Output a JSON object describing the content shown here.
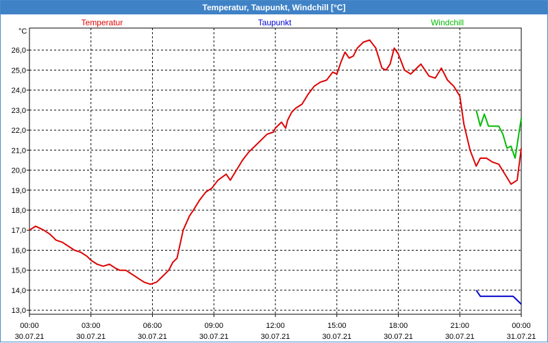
{
  "window": {
    "title": "Temperatur, Taupunkt, Windchill [°C]"
  },
  "colors": {
    "title_bar": "#3f82c6",
    "grid": "#000000",
    "temperatur": "#dd0000",
    "taupunkt": "#0000cc",
    "windchill": "#00bb00"
  },
  "chart_data": {
    "type": "line",
    "title": "Temperatur, Taupunkt, Windchill [°C]",
    "y_unit": "°C",
    "ylim": [
      12.8,
      27.1
    ],
    "xlim": [
      0,
      24
    ],
    "grid": true,
    "legend_placement": "top",
    "y_ticks": [
      13.0,
      14.0,
      15.0,
      16.0,
      17.0,
      18.0,
      19.0,
      20.0,
      21.0,
      22.0,
      23.0,
      24.0,
      25.0,
      26.0
    ],
    "y_tick_labels": [
      "13,0",
      "14,0",
      "15,0",
      "16,0",
      "17,0",
      "18,0",
      "19,0",
      "20,0",
      "21,0",
      "22,0",
      "23,0",
      "24,0",
      "25,0",
      "26,0"
    ],
    "x_ticks": [
      0,
      3,
      6,
      9,
      12,
      15,
      18,
      21,
      24
    ],
    "x_tick_times": [
      "00:00",
      "03:00",
      "06:00",
      "09:00",
      "12:00",
      "15:00",
      "18:00",
      "21:00",
      "00:00"
    ],
    "x_tick_dates": [
      "30.07.21",
      "30.07.21",
      "30.07.21",
      "30.07.21",
      "30.07.21",
      "30.07.21",
      "30.07.21",
      "30.07.21",
      "31.07.21"
    ],
    "series": [
      {
        "name": "Temperatur",
        "color": "#dd0000",
        "x": [
          0,
          0.3,
          0.5,
          0.7,
          1.0,
          1.3,
          1.6,
          1.9,
          2.2,
          2.5,
          2.8,
          3.0,
          3.3,
          3.6,
          3.9,
          4.2,
          4.4,
          4.7,
          5.0,
          5.3,
          5.6,
          5.9,
          6.2,
          6.5,
          6.8,
          7.0,
          7.2,
          7.5,
          7.8,
          8.0,
          8.3,
          8.6,
          8.9,
          9.2,
          9.6,
          9.8,
          10.1,
          10.4,
          10.7,
          11.0,
          11.3,
          11.6,
          11.9,
          12.0,
          12.3,
          12.5,
          12.6,
          12.8,
          13.0,
          13.3,
          13.6,
          13.9,
          14.2,
          14.5,
          14.8,
          15.0,
          15.2,
          15.4,
          15.6,
          15.8,
          16.0,
          16.3,
          16.6,
          16.9,
          17.2,
          17.4,
          17.6,
          17.8,
          18.0,
          18.3,
          18.6,
          18.9,
          19.1,
          19.3,
          19.5,
          19.8,
          20.1,
          20.4,
          20.7,
          21.0,
          21.2,
          21.5,
          21.8,
          22.0,
          22.3,
          22.6,
          22.9,
          23.2,
          23.5,
          23.8,
          24.0
        ],
        "y": [
          17.0,
          17.2,
          17.1,
          17.0,
          16.8,
          16.5,
          16.4,
          16.2,
          16.0,
          15.9,
          15.7,
          15.5,
          15.3,
          15.2,
          15.3,
          15.1,
          15.0,
          15.0,
          14.8,
          14.6,
          14.4,
          14.3,
          14.4,
          14.7,
          15.0,
          15.4,
          15.6,
          17.0,
          17.7,
          18.0,
          18.5,
          18.9,
          19.1,
          19.5,
          19.8,
          19.5,
          20.0,
          20.5,
          20.9,
          21.2,
          21.5,
          21.8,
          21.9,
          22.1,
          22.4,
          22.1,
          22.5,
          22.9,
          23.1,
          23.3,
          23.8,
          24.2,
          24.4,
          24.5,
          24.9,
          24.8,
          25.4,
          25.9,
          25.6,
          25.7,
          26.1,
          26.4,
          26.5,
          26.1,
          25.1,
          25.0,
          25.3,
          26.1,
          25.8,
          25.0,
          24.8,
          25.1,
          25.3,
          25.0,
          24.7,
          24.6,
          25.1,
          24.5,
          24.2,
          23.7,
          22.3,
          21.0,
          20.2,
          20.6,
          20.6,
          20.4,
          20.3,
          19.8,
          19.3,
          19.5,
          21.1
        ]
      },
      {
        "name": "Taupunkt",
        "color": "#0000cc",
        "x": [
          21.8,
          22.0,
          22.2,
          22.5,
          22.8,
          23.0,
          23.3,
          23.6,
          23.8,
          24.0
        ],
        "y": [
          14.0,
          13.7,
          13.7,
          13.7,
          13.7,
          13.7,
          13.7,
          13.7,
          13.5,
          13.3
        ]
      },
      {
        "name": "Windchill",
        "color": "#00bb00",
        "x": [
          21.8,
          22.0,
          22.2,
          22.4,
          22.6,
          22.9,
          23.1,
          23.3,
          23.5,
          23.7,
          24.0
        ],
        "y": [
          23.0,
          22.2,
          22.8,
          22.2,
          22.2,
          22.2,
          21.8,
          21.1,
          21.2,
          20.6,
          22.6
        ]
      }
    ]
  }
}
